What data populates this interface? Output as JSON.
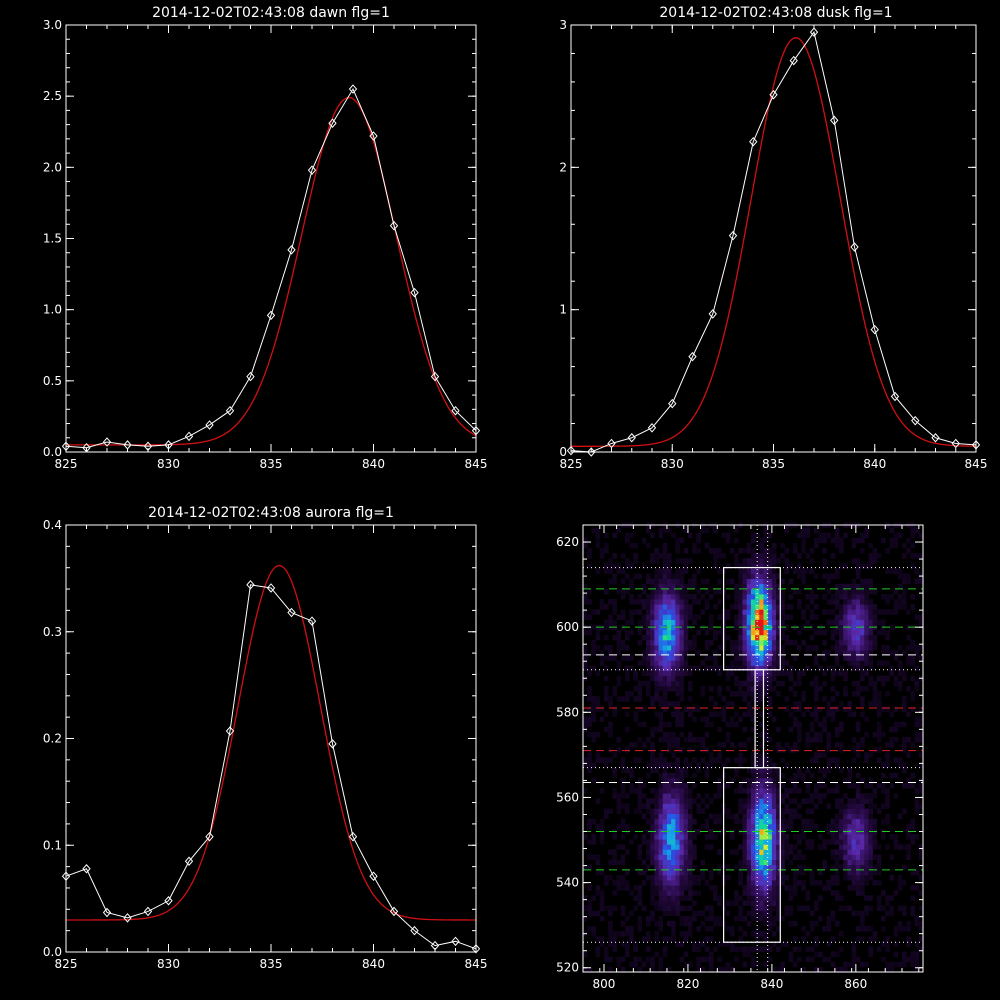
{
  "chart_data": [
    {
      "type": "line",
      "title": "2014-12-02T02:43:08 dawn flg=1",
      "xlim": [
        825,
        845
      ],
      "ylim": [
        0,
        3.0
      ],
      "xticks": [
        "825",
        "830",
        "835",
        "840",
        "845"
      ],
      "yticks": [
        "0.0",
        "0.5",
        "1.0",
        "1.5",
        "2.0",
        "2.5",
        "3.0"
      ],
      "grid": false,
      "colors": {
        "measured": "#ffffff",
        "fit": "#d01010"
      },
      "series": [
        {
          "role": "measured",
          "marker": "diamond",
          "x": [
            825,
            826,
            827,
            828,
            829,
            830,
            831,
            832,
            833,
            834,
            835,
            836,
            837,
            838,
            839,
            840,
            841,
            842,
            843,
            844,
            845
          ],
          "y": [
            0.04,
            0.03,
            0.07,
            0.05,
            0.04,
            0.05,
            0.11,
            0.19,
            0.29,
            0.53,
            0.96,
            1.42,
            1.98,
            2.31,
            2.55,
            2.22,
            1.59,
            1.12,
            0.53,
            0.29,
            0.15
          ]
        },
        {
          "role": "fit",
          "type": "gaussian",
          "amplitude": 2.44,
          "center": 838.8,
          "sigma": 2.3,
          "baseline": 0.05
        }
      ]
    },
    {
      "type": "line",
      "title": "2014-12-02T02:43:08 dusk flg=1",
      "xlim": [
        825,
        845
      ],
      "ylim": [
        0,
        3
      ],
      "xticks": [
        "825",
        "830",
        "835",
        "840",
        "845"
      ],
      "yticks": [
        "0",
        "1",
        "2",
        "3"
      ],
      "grid": false,
      "colors": {
        "measured": "#ffffff",
        "fit": "#d01010"
      },
      "series": [
        {
          "role": "measured",
          "marker": "diamond",
          "x": [
            825,
            826,
            827,
            828,
            829,
            830,
            831,
            832,
            833,
            834,
            835,
            836,
            837,
            838,
            839,
            840,
            841,
            842,
            843,
            844,
            845
          ],
          "y": [
            0.01,
            0.0,
            0.06,
            0.1,
            0.17,
            0.34,
            0.67,
            0.97,
            1.52,
            2.18,
            2.51,
            2.75,
            2.95,
            2.33,
            1.44,
            0.86,
            0.39,
            0.22,
            0.1,
            0.06,
            0.05
          ]
        },
        {
          "role": "fit",
          "type": "gaussian",
          "amplitude": 2.87,
          "center": 836.1,
          "sigma": 2.2,
          "baseline": 0.04
        }
      ]
    },
    {
      "type": "line",
      "title": "2014-12-02T02:43:08 aurora flg=1",
      "xlim": [
        825,
        845
      ],
      "ylim": [
        0,
        0.4
      ],
      "xticks": [
        "825",
        "830",
        "835",
        "840",
        "845"
      ],
      "yticks": [
        "0.0",
        "0.1",
        "0.2",
        "0.3",
        "0.4"
      ],
      "grid": false,
      "colors": {
        "measured": "#ffffff",
        "fit": "#d01010"
      },
      "series": [
        {
          "role": "measured",
          "marker": "diamond",
          "x": [
            825,
            826,
            827,
            828,
            829,
            830,
            831,
            832,
            833,
            834,
            835,
            836,
            837,
            838,
            839,
            840,
            841,
            842,
            843,
            844,
            845
          ],
          "y": [
            0.071,
            0.078,
            0.037,
            0.032,
            0.038,
            0.048,
            0.085,
            0.108,
            0.207,
            0.344,
            0.341,
            0.318,
            0.31,
            0.195,
            0.108,
            0.071,
            0.038,
            0.02,
            0.006,
            0.01,
            0.003
          ]
        },
        {
          "role": "fit",
          "type": "gaussian",
          "amplitude": 0.332,
          "center": 835.4,
          "sigma": 2.0,
          "baseline": 0.03
        }
      ]
    },
    {
      "type": "heatmap",
      "title": "",
      "xlim": [
        795,
        876
      ],
      "ylim": [
        519,
        624
      ],
      "xticks": [
        "800",
        "820",
        "840",
        "860"
      ],
      "xtick_values": [
        800,
        820,
        840,
        860
      ],
      "yticks": [
        "520",
        "540",
        "560",
        "580",
        "600",
        "620"
      ],
      "ytick_values": [
        520,
        540,
        560,
        580,
        600,
        620
      ],
      "colormap": "blue-green-yellow-red",
      "blobs": [
        {
          "x": 815,
          "y": 599,
          "sx": 2.2,
          "sy": 6,
          "amp": 0.55
        },
        {
          "x": 816,
          "y": 550,
          "sx": 2.2,
          "sy": 7,
          "amp": 0.5
        },
        {
          "x": 837,
          "y": 601,
          "sx": 2.0,
          "sy": 6.5,
          "amp": 1.0
        },
        {
          "x": 838,
          "y": 550,
          "sx": 2.0,
          "sy": 7.5,
          "amp": 0.72
        },
        {
          "x": 860,
          "y": 600,
          "sx": 2.2,
          "sy": 4.5,
          "amp": 0.3
        },
        {
          "x": 860,
          "y": 550,
          "sx": 2.2,
          "sy": 5,
          "amp": 0.28
        }
      ],
      "vlines_dotted": [
        836.5,
        839
      ],
      "hlines": [
        {
          "y": 614,
          "style": "dotted",
          "color": "#ffffff"
        },
        {
          "y": 609,
          "style": "dashed",
          "color": "#22cc22"
        },
        {
          "y": 600,
          "style": "dashed",
          "color": "#22cc22"
        },
        {
          "y": 593.5,
          "style": "dashed",
          "color": "#ffffff"
        },
        {
          "y": 590,
          "style": "dotted",
          "color": "#ffffff"
        },
        {
          "y": 581,
          "style": "dashed",
          "color": "#dd2222"
        },
        {
          "y": 571,
          "style": "dashed",
          "color": "#dd2222"
        },
        {
          "y": 567,
          "style": "dotted",
          "color": "#ffffff"
        },
        {
          "y": 563.5,
          "style": "dashed",
          "color": "#ffffff"
        },
        {
          "y": 552,
          "style": "dashed",
          "color": "#22cc22"
        },
        {
          "y": 543,
          "style": "dashed",
          "color": "#22cc22"
        },
        {
          "y": 526,
          "style": "dotted",
          "color": "#ffffff"
        }
      ],
      "boxes": [
        {
          "x0": 828.5,
          "x1": 842,
          "y0": 590,
          "y1": 614
        },
        {
          "x0": 828.5,
          "x1": 842,
          "y0": 526,
          "y1": 567
        },
        {
          "x0": 836,
          "x1": 838,
          "y0": 567,
          "y1": 590
        }
      ]
    }
  ]
}
